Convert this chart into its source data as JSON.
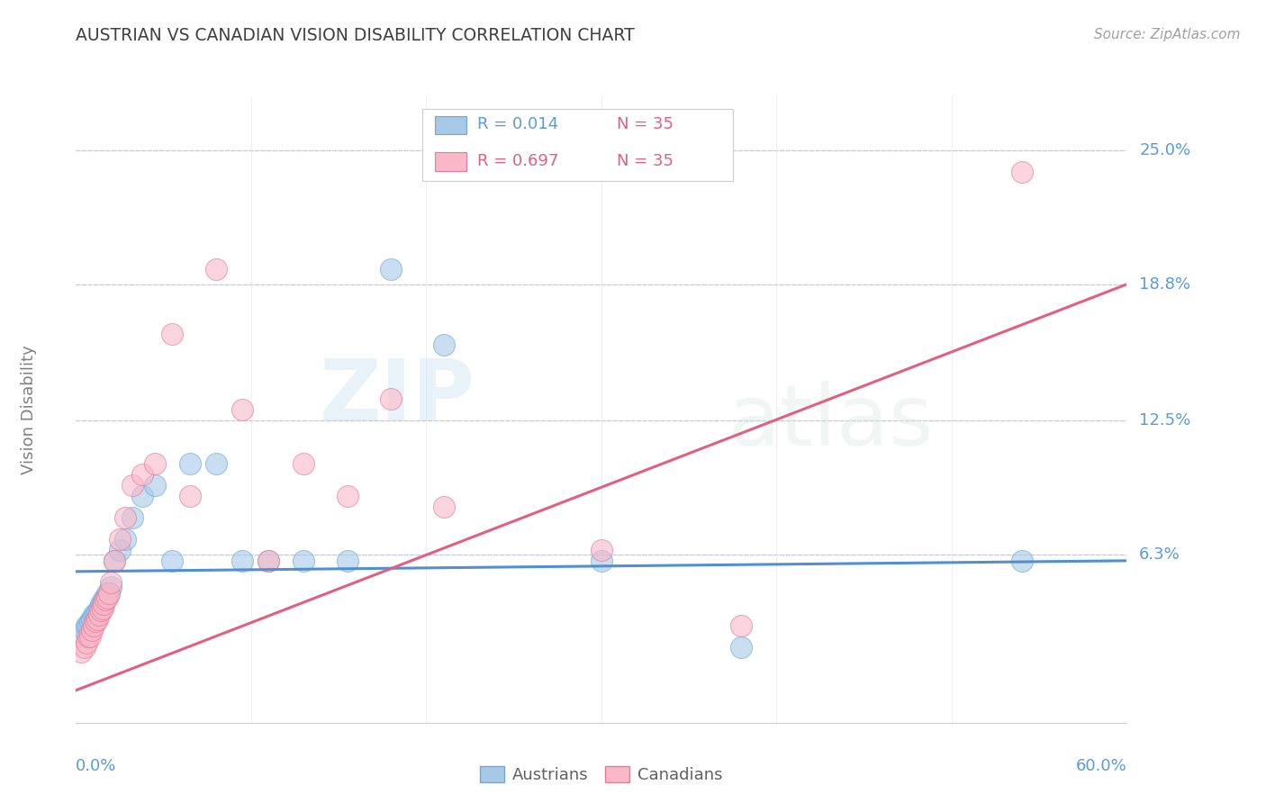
{
  "title": "AUSTRIAN VS CANADIAN VISION DISABILITY CORRELATION CHART",
  "source": "Source: ZipAtlas.com",
  "ylabel": "Vision Disability",
  "ytick_labels": [
    "25.0%",
    "18.8%",
    "12.5%",
    "6.3%"
  ],
  "ytick_values": [
    0.25,
    0.188,
    0.125,
    0.063
  ],
  "xlim": [
    0.0,
    0.6
  ],
  "ylim": [
    -0.015,
    0.275
  ],
  "watermark_1": "ZIP",
  "watermark_2": "atlas",
  "blue_color": "#a8c8e8",
  "blue_edge": "#6aaad4",
  "pink_color": "#f8b8c8",
  "pink_edge": "#e87898",
  "blue_line_color": "#5090d0",
  "pink_line_color": "#e06080",
  "title_color": "#404040",
  "axis_label_color": "#5b9bd5",
  "background_color": "#ffffff",
  "grid_color": "#c8c8d8",
  "source_color": "#a0a0a0",
  "ylabel_color": "#808080",
  "legend_r_blue": "#5b9bd5",
  "legend_n_red": "#e06080",
  "aus_x": [
    0.003,
    0.005,
    0.006,
    0.007,
    0.008,
    0.009,
    0.01,
    0.011,
    0.012,
    0.013,
    0.014,
    0.015,
    0.016,
    0.017,
    0.018,
    0.019,
    0.02,
    0.022,
    0.025,
    0.028,
    0.032,
    0.038,
    0.045,
    0.055,
    0.065,
    0.08,
    0.095,
    0.11,
    0.13,
    0.155,
    0.18,
    0.21,
    0.3,
    0.38,
    0.54
  ],
  "aus_y": [
    0.025,
    0.028,
    0.03,
    0.03,
    0.032,
    0.033,
    0.035,
    0.035,
    0.036,
    0.038,
    0.04,
    0.04,
    0.042,
    0.043,
    0.045,
    0.045,
    0.048,
    0.06,
    0.065,
    0.07,
    0.08,
    0.09,
    0.095,
    0.06,
    0.105,
    0.105,
    0.06,
    0.06,
    0.06,
    0.06,
    0.195,
    0.16,
    0.06,
    0.02,
    0.06
  ],
  "can_x": [
    0.003,
    0.005,
    0.006,
    0.007,
    0.008,
    0.009,
    0.01,
    0.011,
    0.012,
    0.013,
    0.014,
    0.015,
    0.016,
    0.017,
    0.018,
    0.019,
    0.02,
    0.022,
    0.025,
    0.028,
    0.032,
    0.038,
    0.045,
    0.055,
    0.065,
    0.08,
    0.095,
    0.11,
    0.13,
    0.155,
    0.18,
    0.21,
    0.3,
    0.38,
    0.54
  ],
  "can_y": [
    0.018,
    0.02,
    0.022,
    0.025,
    0.025,
    0.028,
    0.03,
    0.032,
    0.033,
    0.035,
    0.037,
    0.038,
    0.04,
    0.042,
    0.043,
    0.045,
    0.05,
    0.06,
    0.07,
    0.08,
    0.095,
    0.1,
    0.105,
    0.165,
    0.09,
    0.195,
    0.13,
    0.06,
    0.105,
    0.09,
    0.135,
    0.085,
    0.065,
    0.03,
    0.24
  ],
  "aus_line_x": [
    0.0,
    0.6
  ],
  "aus_line_y": [
    0.055,
    0.06
  ],
  "can_line_x": [
    0.0,
    0.6
  ],
  "can_line_y": [
    0.0,
    0.188
  ]
}
